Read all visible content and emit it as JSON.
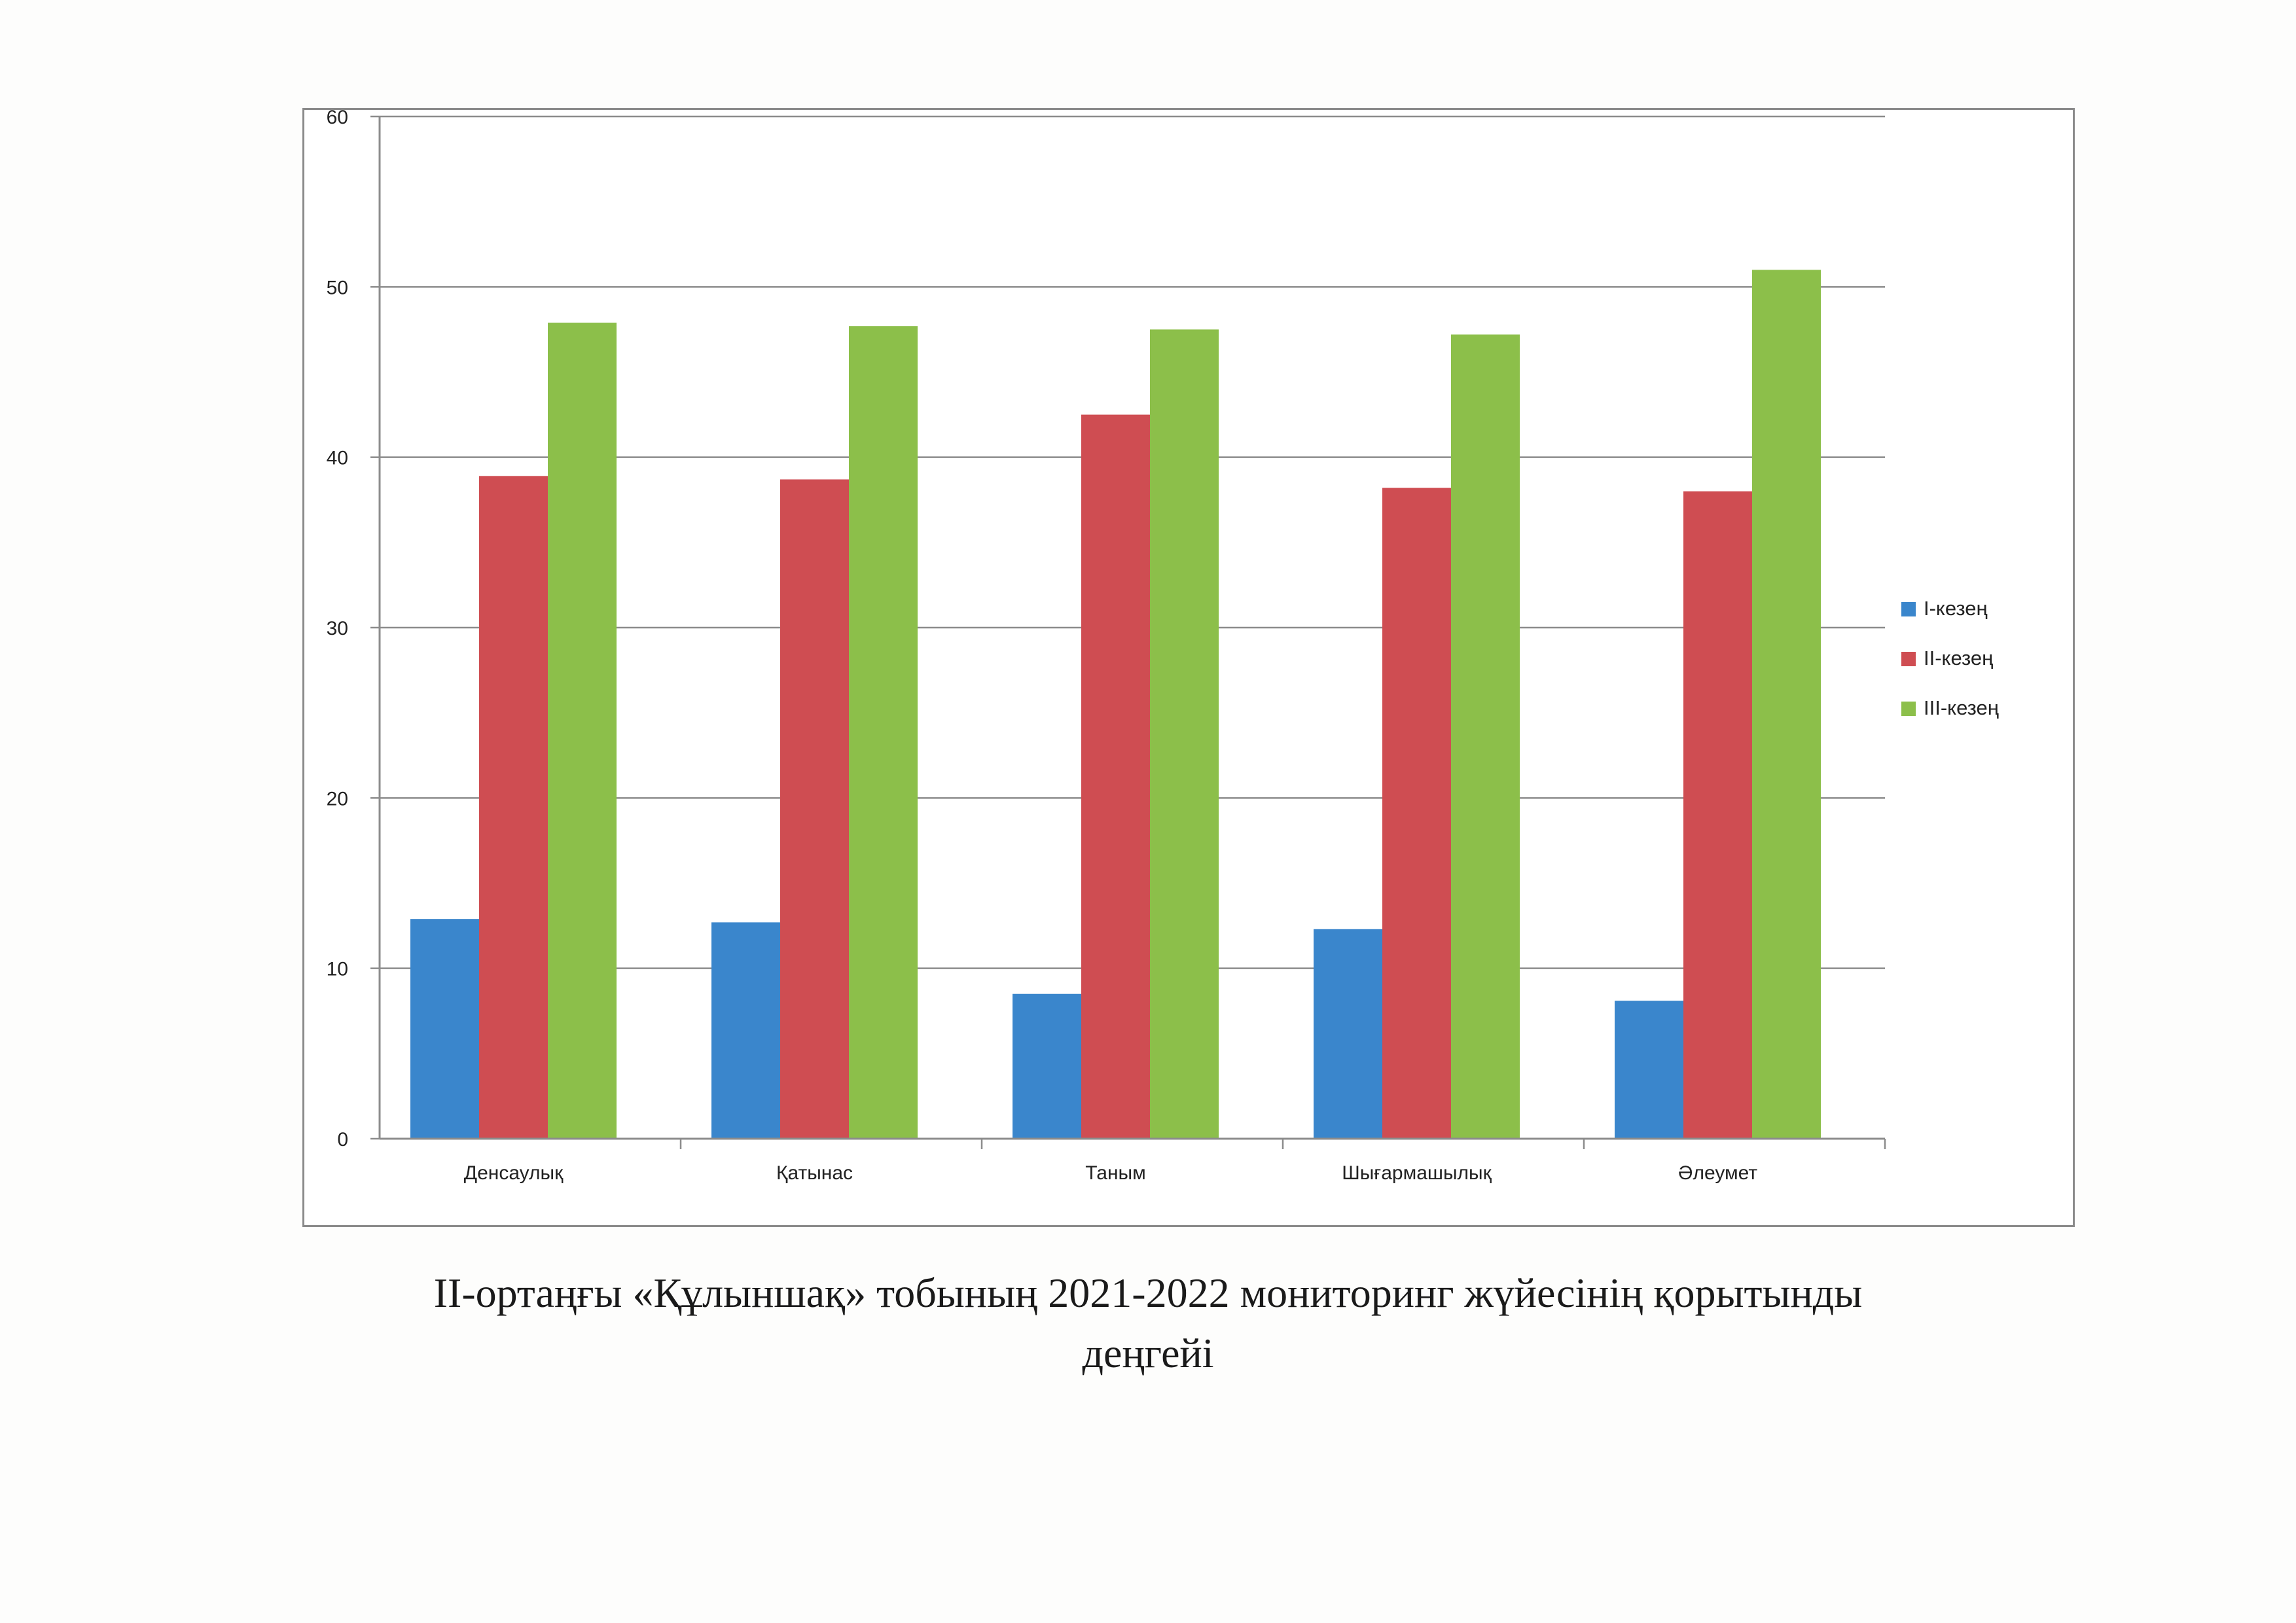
{
  "chart_data": {
    "type": "bar",
    "categories": [
      "Денсаулық",
      "Қатынас",
      "Таным",
      "Шығармашылық",
      "Әлеумет"
    ],
    "series": [
      {
        "name": "I-кезең",
        "color": "#3a86cc",
        "values": [
          12.9,
          12.7,
          8.5,
          12.3,
          8.1
        ]
      },
      {
        "name": "II-кезең",
        "color": "#cf4d52",
        "values": [
          38.9,
          38.7,
          42.5,
          38.2,
          38.0
        ]
      },
      {
        "name": "III-кезең",
        "color": "#8cbf4a",
        "values": [
          47.9,
          47.7,
          47.5,
          47.2,
          51.0
        ]
      }
    ],
    "ylim": [
      0,
      60
    ],
    "yticks": [
      0,
      10,
      20,
      30,
      40,
      50,
      60
    ],
    "grid": true,
    "legend_position": "right",
    "title": "",
    "xlabel": "",
    "ylabel": ""
  },
  "caption": {
    "line1": "II-ортаңғы «Құлыншақ» тобының 2021-2022 мониторинг жүйесінің қорытынды",
    "line2": "деңгейі"
  }
}
